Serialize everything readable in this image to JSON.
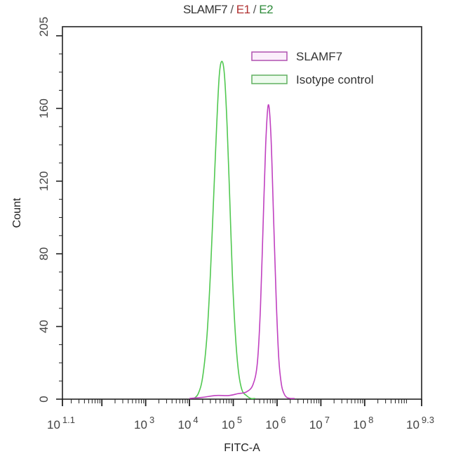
{
  "chart_data": {
    "type": "line",
    "subtype": "flow-cytometry-histogram-overlay",
    "title": {
      "parts": [
        {
          "text": "SLAMF7",
          "color": "#333333"
        },
        {
          "text": " / ",
          "color": "#555555"
        },
        {
          "text": "E1",
          "color": "#b03030"
        },
        {
          "text": " / ",
          "color": "#555555"
        },
        {
          "text": "E2",
          "color": "#2e8b3a"
        }
      ],
      "full": "SLAMF7 / E1 / E2"
    },
    "xlabel": "FITC-A",
    "ylabel": "Count",
    "xscale": "log10",
    "xlim_log10": [
      1.1,
      9.3
    ],
    "ylim": [
      0,
      205
    ],
    "yticks": [
      0,
      40,
      80,
      120,
      160,
      205
    ],
    "ytick_labels": [
      "0",
      "40",
      "80",
      "120",
      "160",
      "205"
    ],
    "xticks_log10": [
      1.1,
      2,
      3,
      4,
      5,
      6,
      7,
      8,
      9.3
    ],
    "xtick_labels": [
      {
        "base": "10",
        "exp": "1.1"
      },
      {
        "base": "",
        "exp": ""
      },
      {
        "base": "10",
        "exp": "3"
      },
      {
        "base": "10",
        "exp": "4"
      },
      {
        "base": "10",
        "exp": "5"
      },
      {
        "base": "10",
        "exp": "6"
      },
      {
        "base": "10",
        "exp": "7"
      },
      {
        "base": "10",
        "exp": "8"
      },
      {
        "base": "10",
        "exp": "9.3"
      }
    ],
    "grid": false,
    "legend_position": "upper-right",
    "series": [
      {
        "name": "SLAMF7",
        "color": "#c040c0",
        "x_log10": [
          4.0,
          4.3,
          4.6,
          4.9,
          5.1,
          5.3,
          5.45,
          5.55,
          5.62,
          5.68,
          5.74,
          5.8,
          5.86,
          5.92,
          5.98,
          6.04,
          6.1,
          6.16,
          6.22,
          6.3,
          6.4
        ],
        "values": [
          0,
          1,
          2,
          2,
          3,
          4,
          8,
          20,
          50,
          95,
          140,
          162,
          145,
          100,
          55,
          22,
          8,
          3,
          1,
          0,
          0
        ],
        "peak": {
          "x_log10": 5.8,
          "count": 162
        }
      },
      {
        "name": "Isotype control",
        "color": "#50c850",
        "x_log10": [
          4.1,
          4.2,
          4.3,
          4.4,
          4.48,
          4.55,
          4.62,
          4.68,
          4.74,
          4.8,
          4.86,
          4.92,
          4.98,
          5.05,
          5.12,
          5.2,
          5.3,
          5.4,
          5.5
        ],
        "values": [
          0,
          3,
          12,
          35,
          70,
          110,
          150,
          178,
          186,
          178,
          150,
          110,
          68,
          35,
          15,
          5,
          2,
          0,
          0
        ],
        "peak": {
          "x_log10": 4.72,
          "count": 186
        }
      }
    ]
  },
  "legend": {
    "items": [
      {
        "label": "SLAMF7",
        "stroke": "#b050b0",
        "fill": "#fbeefb"
      },
      {
        "label": "Isotype control",
        "stroke": "#60b060",
        "fill": "#eefbee"
      }
    ]
  }
}
